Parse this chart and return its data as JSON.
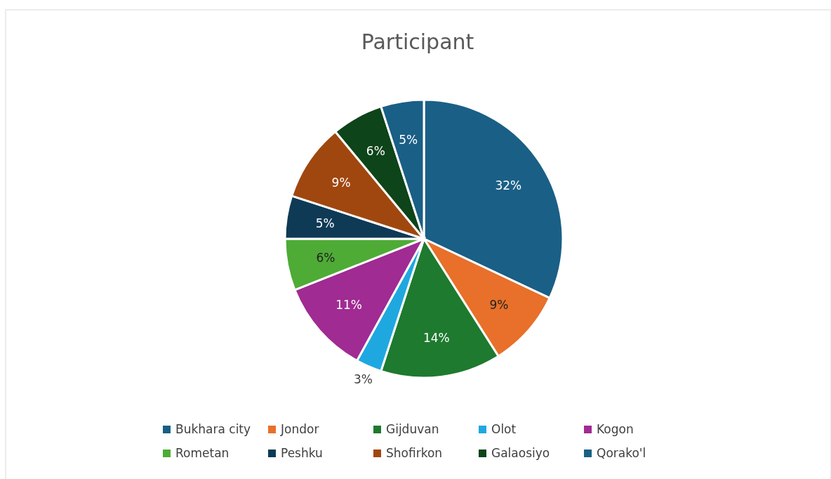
{
  "chart_data": {
    "type": "pie",
    "title": "Participant",
    "categories": [
      "Bukhara city",
      "Jondor",
      "Gijduvan",
      "Olot",
      "Kogon",
      "Rometan",
      "Peshku",
      "Shofirkon",
      "Galaosiyo",
      "Qorako'l"
    ],
    "values": [
      32,
      9,
      14,
      3,
      11,
      6,
      5,
      9,
      6,
      5
    ],
    "colors": [
      "#1a5f86",
      "#e8702a",
      "#1e7a2e",
      "#1fa8e0",
      "#a02b93",
      "#4eab35",
      "#0e3a56",
      "#a0470f",
      "#0d4419",
      "#1a5f86"
    ],
    "value_labels": [
      "32%",
      "9%",
      "14%",
      "3%",
      "11%",
      "6%",
      "5%",
      "9%",
      "6%",
      "5%"
    ],
    "legend": "bottom"
  }
}
